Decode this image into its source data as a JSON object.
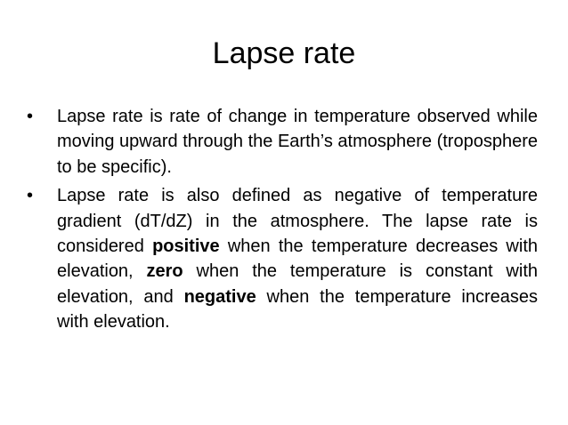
{
  "slide": {
    "title": "Lapse rate",
    "bullet_marker": "•",
    "bullets": [
      {
        "text": "Lapse rate is rate of change in temperature observed while moving upward through the Earth’s atmosphere (troposphere to be specific)."
      },
      {
        "text_1": "Lapse rate is also defined as negative of temperature gradient (dT/dZ) in the atmosphere. The lapse rate is considered ",
        "bold_1": "positive",
        "text_2": " when the temperature decreases with elevation, ",
        "bold_2": "zero",
        "text_3": " when the temperature is constant with elevation, and ",
        "bold_3": "negative",
        "text_4": " when the temperature increases with elevation."
      }
    ]
  }
}
